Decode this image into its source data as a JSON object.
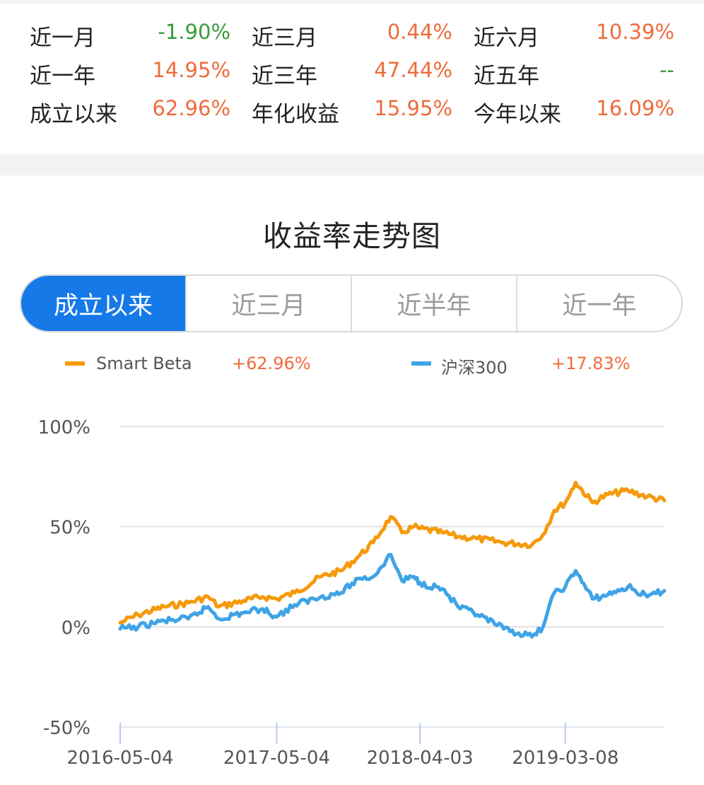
{
  "stats": [
    [
      {
        "label": "近一月",
        "value": "-1.90%",
        "color": "#3a9a3a"
      },
      {
        "label": "近三月",
        "value": "0.44%",
        "color": "#ee6b3b"
      },
      {
        "label": "近六月",
        "value": "10.39%",
        "color": "#ee6b3b"
      }
    ],
    [
      {
        "label": "近一年",
        "value": "14.95%",
        "color": "#ee6b3b"
      },
      {
        "label": "近三年",
        "value": "47.44%",
        "color": "#ee6b3b"
      },
      {
        "label": "近五年",
        "value": "--",
        "color": "#3a9a3a"
      }
    ],
    [
      {
        "label": "成立以来",
        "value": "62.96%",
        "color": "#ee6b3b"
      },
      {
        "label": "年化收益",
        "value": "15.95%",
        "color": "#ee6b3b"
      },
      {
        "label": "今年以来",
        "value": "16.09%",
        "color": "#ee6b3b"
      }
    ]
  ],
  "section_title": "收益率走势图",
  "tabs": [
    {
      "label": "成立以来",
      "active": true
    },
    {
      "label": "近三月",
      "active": false
    },
    {
      "label": "近半年",
      "active": false
    },
    {
      "label": "近一年",
      "active": false
    }
  ],
  "legend": [
    {
      "name": "Smart Beta",
      "value": "+62.96%",
      "color": "#f59a0c"
    },
    {
      "name": "沪深300",
      "value": "+17.83%",
      "color": "#3fa4e6"
    }
  ],
  "chart_data": {
    "type": "line",
    "title": "",
    "xlabel": "",
    "ylabel": "",
    "ylim": [
      -50,
      100
    ],
    "ytick_labels": [
      "100%",
      "50%",
      "0%",
      "-50%"
    ],
    "yticks": [
      100,
      50,
      0,
      -50
    ],
    "xtick_labels": [
      "2016-05-04",
      "2017-05-04",
      "2018-04-03",
      "2019-03-08"
    ],
    "xlim": [
      "2016-05-04",
      "2019-10-25"
    ],
    "grid": true,
    "series": [
      {
        "name": "Smart Beta",
        "color": "#f59a0c",
        "points": [
          [
            "2016-05-04",
            2
          ],
          [
            "2016-06-15",
            6
          ],
          [
            "2016-08-15",
            10
          ],
          [
            "2016-10-10",
            12
          ],
          [
            "2016-11-25",
            15
          ],
          [
            "2016-12-20",
            10
          ],
          [
            "2017-02-15",
            13
          ],
          [
            "2017-04-01",
            15
          ],
          [
            "2017-05-04",
            14
          ],
          [
            "2017-06-15",
            17
          ],
          [
            "2017-08-15",
            25
          ],
          [
            "2017-10-01",
            28
          ],
          [
            "2017-11-10",
            35
          ],
          [
            "2017-12-15",
            42
          ],
          [
            "2018-01-25",
            55
          ],
          [
            "2018-02-20",
            47
          ],
          [
            "2018-03-20",
            50
          ],
          [
            "2018-04-03",
            49
          ],
          [
            "2018-05-25",
            47
          ],
          [
            "2018-07-01",
            45
          ],
          [
            "2018-08-15",
            44
          ],
          [
            "2018-10-15",
            42
          ],
          [
            "2018-12-20",
            41
          ],
          [
            "2019-01-15",
            46
          ],
          [
            "2019-02-10",
            58
          ],
          [
            "2019-03-08",
            62
          ],
          [
            "2019-04-01",
            72
          ],
          [
            "2019-05-10",
            62
          ],
          [
            "2019-06-15",
            66
          ],
          [
            "2019-08-01",
            68
          ],
          [
            "2019-09-15",
            65
          ],
          [
            "2019-10-25",
            63
          ]
        ]
      },
      {
        "name": "沪深300",
        "color": "#3fa4e6",
        "points": [
          [
            "2016-05-04",
            -1
          ],
          [
            "2016-06-15",
            0
          ],
          [
            "2016-08-15",
            3
          ],
          [
            "2016-10-10",
            4
          ],
          [
            "2016-11-25",
            10
          ],
          [
            "2016-12-20",
            4
          ],
          [
            "2017-02-15",
            7
          ],
          [
            "2017-04-01",
            9
          ],
          [
            "2017-05-04",
            5
          ],
          [
            "2017-06-15",
            11
          ],
          [
            "2017-08-15",
            15
          ],
          [
            "2017-10-01",
            17
          ],
          [
            "2017-11-10",
            24
          ],
          [
            "2017-12-15",
            25
          ],
          [
            "2018-01-25",
            36
          ],
          [
            "2018-02-20",
            23
          ],
          [
            "2018-03-20",
            25
          ],
          [
            "2018-04-03",
            22
          ],
          [
            "2018-05-25",
            19
          ],
          [
            "2018-07-01",
            10
          ],
          [
            "2018-08-15",
            6
          ],
          [
            "2018-10-15",
            -1
          ],
          [
            "2018-12-20",
            -5
          ],
          [
            "2019-01-15",
            0
          ],
          [
            "2019-02-10",
            17
          ],
          [
            "2019-03-08",
            20
          ],
          [
            "2019-04-01",
            28
          ],
          [
            "2019-05-10",
            14
          ],
          [
            "2019-06-15",
            16
          ],
          [
            "2019-08-01",
            20
          ],
          [
            "2019-09-15",
            15
          ],
          [
            "2019-10-25",
            18
          ]
        ]
      }
    ]
  }
}
